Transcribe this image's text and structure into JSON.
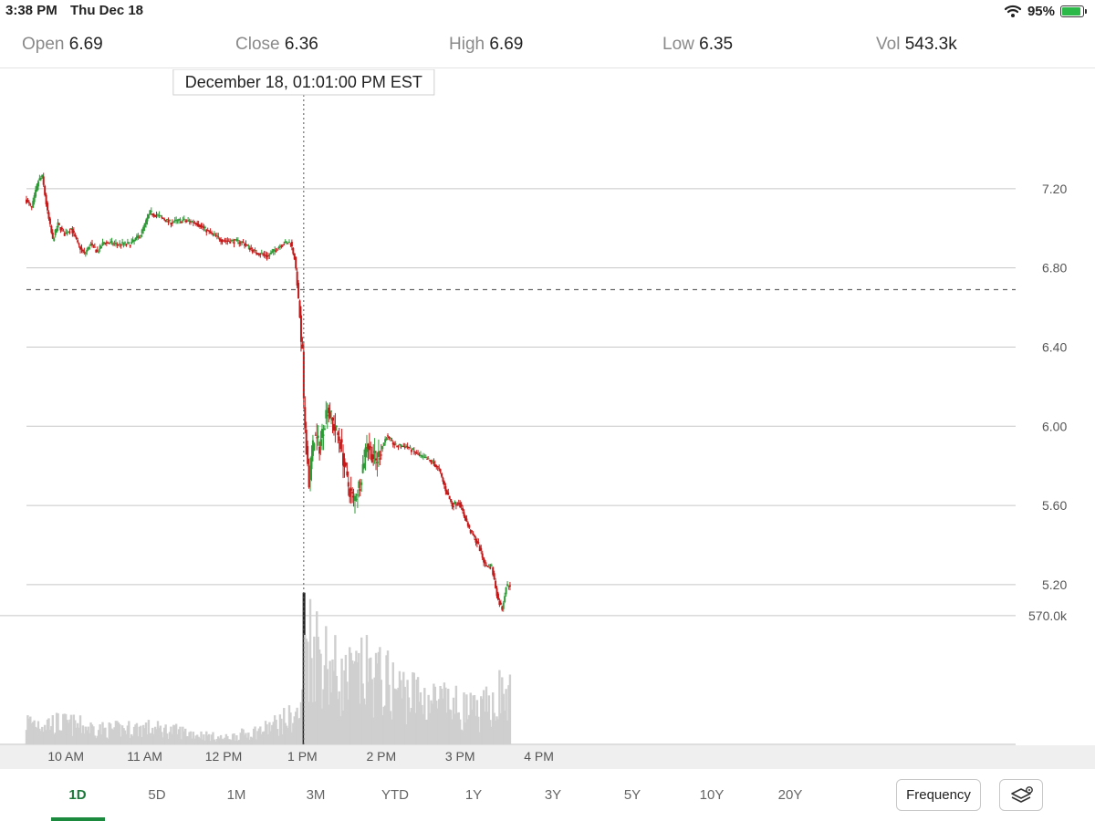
{
  "status_bar": {
    "time": "3:38 PM",
    "date": "Thu Dec 18",
    "battery": "95%",
    "battery_level": 0.95
  },
  "stats": [
    {
      "label": "Open",
      "value": "6.69"
    },
    {
      "label": "Close",
      "value": "6.36"
    },
    {
      "label": "High",
      "value": "6.69"
    },
    {
      "label": "Low",
      "value": "6.35"
    },
    {
      "label": "Vol",
      "value": "543.3k"
    }
  ],
  "tooltip": "December 18, 01:01:00 PM EST",
  "colors": {
    "up": "#2c9b35",
    "down": "#c41818",
    "volume": "#cfcfcf",
    "accent": "#1b8a3f"
  },
  "time_labels": [
    "10 AM",
    "11 AM",
    "12 PM",
    "1 PM",
    "2 PM",
    "3 PM",
    "4 PM"
  ],
  "range_tabs": [
    "1D",
    "5D",
    "1M",
    "3M",
    "YTD",
    "1Y",
    "3Y",
    "5Y",
    "10Y",
    "20Y"
  ],
  "active_range": "1D",
  "frequency_label": "Frequency",
  "chart_data": {
    "type": "candlestick",
    "y_ticks": [
      "7.20",
      "6.80",
      "6.40",
      "6.00",
      "5.60",
      "5.20"
    ],
    "y_tick_values": [
      7.2,
      6.8,
      6.4,
      6.0,
      5.6,
      5.2
    ],
    "ylim": [
      5.02,
      7.6
    ],
    "volume_tick": "570.0k",
    "volume_tick_value": 570000,
    "volume_max": 800000,
    "reference_price": 6.69,
    "crosshair_time": "13:01",
    "session": {
      "start": "09:30",
      "end": "16:00"
    },
    "last_time": "15:38",
    "price_path": [
      [
        "09:30",
        7.15
      ],
      [
        "09:35",
        7.1
      ],
      [
        "09:40",
        7.24
      ],
      [
        "09:43",
        7.26
      ],
      [
        "09:47",
        7.08
      ],
      [
        "09:51",
        6.94
      ],
      [
        "09:55",
        7.02
      ],
      [
        "10:00",
        6.97
      ],
      [
        "10:05",
        7.0
      ],
      [
        "10:10",
        6.92
      ],
      [
        "10:15",
        6.87
      ],
      [
        "10:20",
        6.92
      ],
      [
        "10:25",
        6.88
      ],
      [
        "10:30",
        6.93
      ],
      [
        "10:40",
        6.92
      ],
      [
        "10:50",
        6.92
      ],
      [
        "10:58",
        6.97
      ],
      [
        "11:05",
        7.08
      ],
      [
        "11:12",
        7.06
      ],
      [
        "11:20",
        7.03
      ],
      [
        "11:30",
        7.04
      ],
      [
        "11:40",
        7.03
      ],
      [
        "11:50",
        6.98
      ],
      [
        "12:00",
        6.94
      ],
      [
        "12:15",
        6.93
      ],
      [
        "12:25",
        6.88
      ],
      [
        "12:35",
        6.86
      ],
      [
        "12:45",
        6.92
      ],
      [
        "12:52",
        6.93
      ],
      [
        "12:55",
        6.85
      ],
      [
        "12:57",
        6.72
      ],
      [
        "12:59",
        6.55
      ],
      [
        "13:00",
        6.4
      ],
      [
        "13:01",
        6.36
      ],
      [
        "13:02",
        6.1
      ],
      [
        "13:04",
        5.9
      ],
      [
        "13:06",
        5.72
      ],
      [
        "13:10",
        5.95
      ],
      [
        "13:14",
        5.9
      ],
      [
        "13:20",
        6.1
      ],
      [
        "13:25",
        6.0
      ],
      [
        "13:30",
        5.92
      ],
      [
        "13:35",
        5.72
      ],
      [
        "13:40",
        5.62
      ],
      [
        "13:45",
        5.72
      ],
      [
        "13:50",
        5.92
      ],
      [
        "13:57",
        5.82
      ],
      [
        "14:05",
        5.95
      ],
      [
        "14:12",
        5.9
      ],
      [
        "14:20",
        5.9
      ],
      [
        "14:30",
        5.85
      ],
      [
        "14:40",
        5.82
      ],
      [
        "14:45",
        5.78
      ],
      [
        "14:50",
        5.68
      ],
      [
        "14:55",
        5.6
      ],
      [
        "15:00",
        5.62
      ],
      [
        "15:08",
        5.48
      ],
      [
        "15:15",
        5.4
      ],
      [
        "15:20",
        5.3
      ],
      [
        "15:25",
        5.29
      ],
      [
        "15:30",
        5.12
      ],
      [
        "15:33",
        5.08
      ],
      [
        "15:36",
        5.19
      ],
      [
        "15:38",
        5.2
      ]
    ],
    "volume_path": [
      [
        "09:30",
        110000
      ],
      [
        "10:00",
        100000
      ],
      [
        "10:30",
        70000
      ],
      [
        "11:00",
        80000
      ],
      [
        "11:30",
        60000
      ],
      [
        "12:00",
        30000
      ],
      [
        "12:30",
        70000
      ],
      [
        "12:59",
        150000
      ],
      [
        "13:01",
        520000
      ],
      [
        "13:10",
        480000
      ],
      [
        "13:30",
        300000
      ],
      [
        "13:50",
        340000
      ],
      [
        "14:15",
        260000
      ],
      [
        "14:45",
        200000
      ],
      [
        "15:15",
        150000
      ],
      [
        "15:30",
        240000
      ],
      [
        "15:38",
        220000
      ]
    ]
  }
}
